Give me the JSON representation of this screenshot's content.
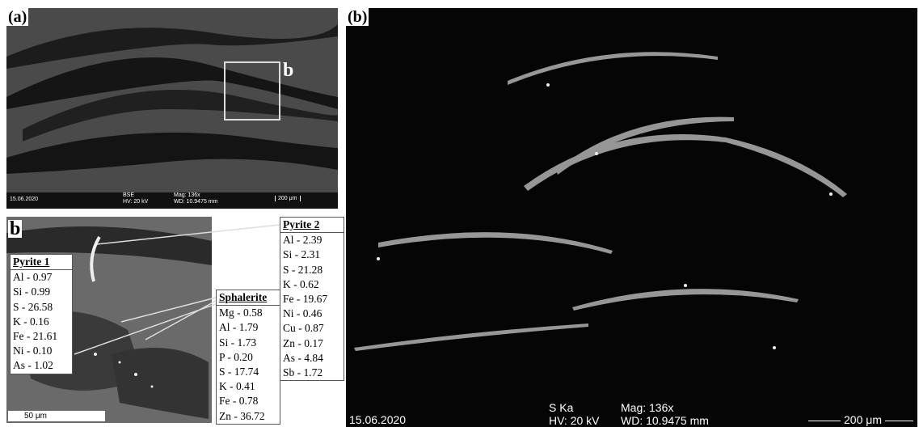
{
  "panel_a": {
    "label": "(a)",
    "inset_marker": "b",
    "info": {
      "date": "15.06.2020",
      "detector": "BSE",
      "hv": "HV: 20 kV",
      "mag": "Mag: 136x",
      "wd": "WD: 10.9475 mm",
      "scale": "200 μm"
    }
  },
  "inset_b": {
    "label": "b",
    "scale": "50 μm",
    "tables": [
      {
        "title": "Pyrite 1",
        "rows": [
          "Al - 0.97",
          "Si - 0.99",
          "S - 26.58",
          "K - 0.16",
          "Fe - 21.61",
          "Ni - 0.10",
          "As - 1.02"
        ]
      },
      {
        "title": "Pyrite 2",
        "rows": [
          "Al - 2.39",
          "Si - 2.31",
          "S - 21.28",
          "K - 0.62",
          "Fe - 19.67",
          "Ni - 0.46",
          "Cu - 0.87",
          "Zn - 0.17",
          "As - 4.84",
          "Sb - 1.72"
        ]
      },
      {
        "title": "Sphalerite",
        "rows": [
          "Mg - 0.58",
          "Al - 1.79",
          "Si - 1.73",
          "P - 0.20",
          "S - 17.74",
          "K - 0.41",
          "Fe - 0.78",
          "Zn - 36.72"
        ]
      }
    ]
  },
  "panel_b": {
    "label": "(b)",
    "info": {
      "date": "15.06.2020",
      "detector": "S Ka",
      "hv": "HV: 20 kV",
      "mag": "Mag: 136x",
      "wd": "WD: 10.9475 mm",
      "scale": "200 μm"
    }
  }
}
